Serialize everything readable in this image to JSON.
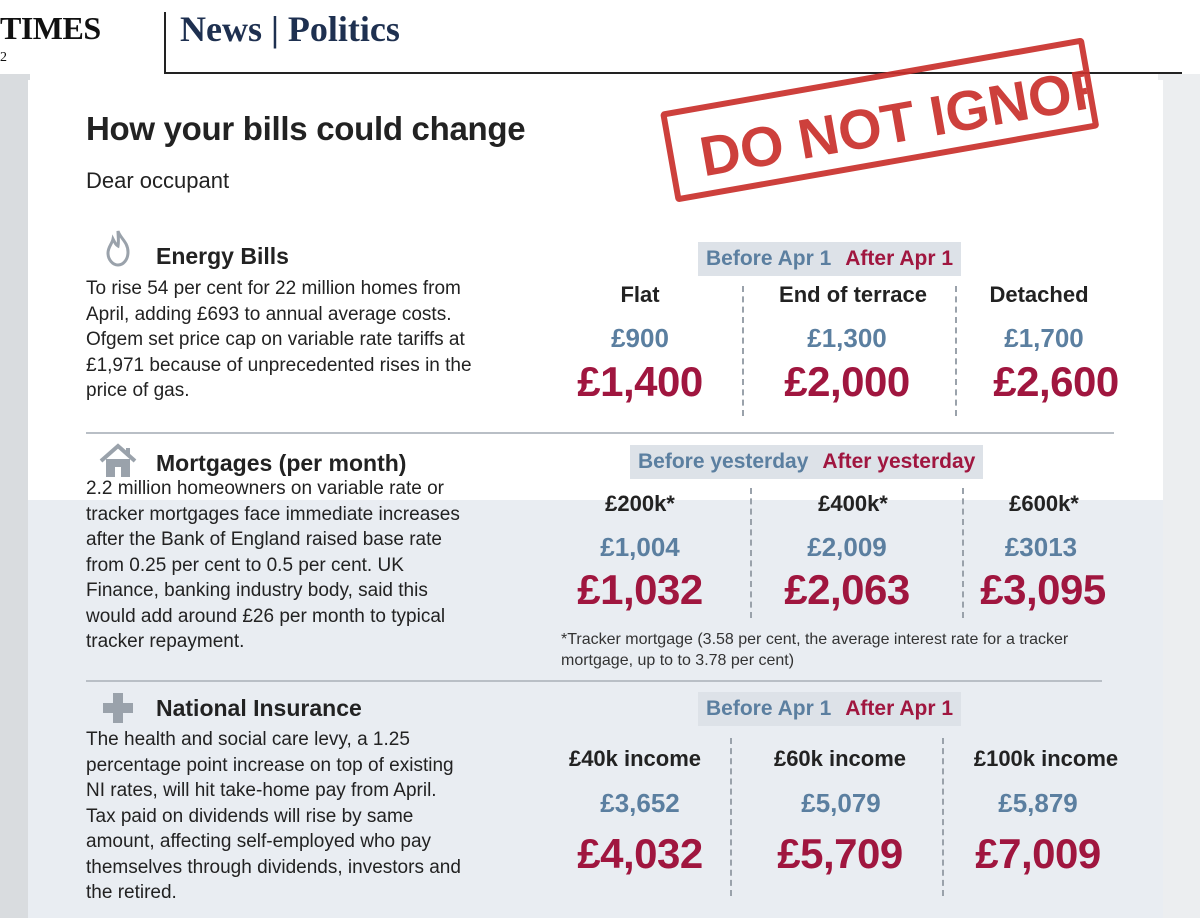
{
  "masthead": {
    "brand": "TIMES",
    "brand_sub": "2",
    "section": "News | Politics"
  },
  "graphic": {
    "headline": "How your bills could change",
    "greeting": "Dear occupant",
    "stamp": "DO NOT IGNORE",
    "sections": [
      {
        "title": "Energy Bills",
        "icon": "flame-icon",
        "description": [
          "To rise 54 per cent for 22 million homes from",
          "April, adding £693 to annual average costs.",
          "Ofgem set price cap on variable rate tariffs at",
          "£1,971 because of unprecedented rises in the",
          "price of gas."
        ],
        "legend_before": "Before Apr 1",
        "legend_after": "After Apr 1",
        "columns": [
          {
            "label": "Flat",
            "before": "£900",
            "after": "£1,400"
          },
          {
            "label": "End of terrace",
            "before": "£1,300",
            "after": "£2,000"
          },
          {
            "label": "Detached",
            "before": "£1,700",
            "after": "£2,600"
          }
        ]
      },
      {
        "title": "Mortgages (per month)",
        "icon": "house-icon",
        "description": [
          "2.2 million homeowners on variable rate or",
          "tracker mortgages face immediate increases",
          "after the Bank of England raised base rate",
          "from 0.25 per cent to 0.5 per cent. UK",
          "Finance, banking industry body, said this",
          "would add around £26 per month to typical",
          "tracker repayment."
        ],
        "legend_before": "Before yesterday",
        "legend_after": "After yesterday",
        "columns": [
          {
            "label": "£200k*",
            "before": "£1,004",
            "after": "£1,032"
          },
          {
            "label": "£400k*",
            "before": "£2,009",
            "after": "£2,063"
          },
          {
            "label": "£600k*",
            "before": "£3013",
            "after": "£3,095"
          }
        ],
        "footnote": [
          "*Tracker mortgage (3.58 per cent, the average interest rate for a tracker",
          "mortgage, up to to 3.78 per cent)"
        ]
      },
      {
        "title": "National Insurance",
        "icon": "plus-icon",
        "description": [
          "The health and social care levy, a 1.25",
          "percentage point increase on top of existing",
          "NI rates, will hit take-home pay from April.",
          "Tax paid on dividends will rise by same",
          "amount, affecting self-employed who pay",
          "themselves through dividends, investors and",
          "the retired."
        ],
        "legend_before": "Before Apr 1",
        "legend_after": "After Apr 1",
        "columns": [
          {
            "label": "£40k income",
            "before": "£3,652",
            "after": "£4,032"
          },
          {
            "label": "£60k income",
            "before": "£5,079",
            "after": "£5,709"
          },
          {
            "label": "£100k income",
            "before": "£5,879",
            "after": "£7,009"
          }
        ]
      }
    ]
  },
  "colors": {
    "before": "#5b7fa0",
    "after": "#a0163f",
    "stamp": "#c9302c",
    "masthead_section": "#1e3050"
  }
}
